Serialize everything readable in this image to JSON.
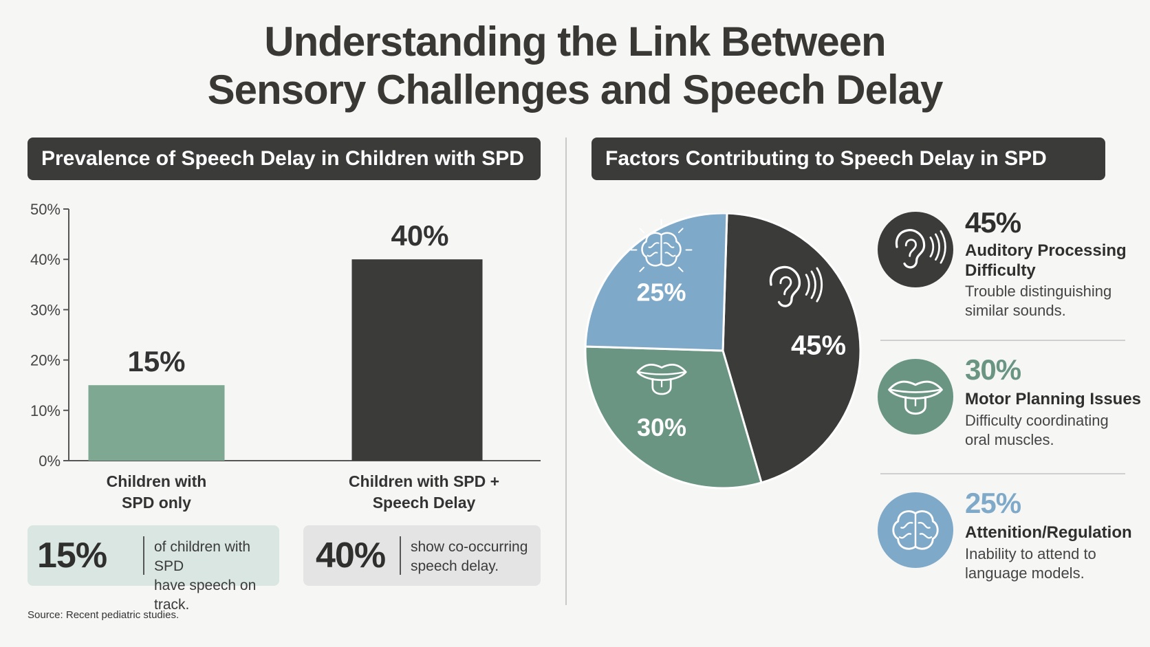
{
  "title": {
    "line1": "Understanding the Link Between",
    "line2": "Sensory Challenges and Speech Delay"
  },
  "colors": {
    "dark": "#3b3b3a",
    "green": "#7ea892",
    "pie_green": "#6a9582",
    "blue": "#7fa9c8",
    "stat_green_bg": "#d9e6e1",
    "stat_gray_bg": "#e4e4e4"
  },
  "left_panel": {
    "header": "Prevalence of Speech Delay in Children with SPD",
    "stats": [
      {
        "value": "15%",
        "text_line1": "of children with SPD",
        "text_line2": "have speech on track."
      },
      {
        "value": "40%",
        "text_line1": "show co-occurring",
        "text_line2": "speech delay."
      }
    ]
  },
  "right_panel": {
    "header": "Factors Contributing to Speech Delay in SPD",
    "factors": [
      {
        "percent": "45%",
        "title_line1": "Auditory Processing",
        "title_line2": "Difficulty",
        "desc_line1": "Trouble distinguishing",
        "desc_line2": "similar sounds.",
        "icon": "ear-icon",
        "color": "#3b3b3a"
      },
      {
        "percent": "30%",
        "title_line1": "Motor Planning Issues",
        "title_line2": "",
        "desc_line1": "Difficulty coordinating",
        "desc_line2": "oral muscles.",
        "icon": "mouth-icon",
        "color": "#6a9582"
      },
      {
        "percent": "25%",
        "title_line1": "Attenition/Regulation",
        "title_line2": "",
        "desc_line1": "Inability to attend to",
        "desc_line2": "language models.",
        "icon": "brain-icon",
        "color": "#7fa9c8"
      }
    ]
  },
  "source": "Source: Recent pediatric studies.",
  "chart_data": [
    {
      "type": "bar",
      "title": "Prevalence of Speech Delay in Children with SPD",
      "categories": [
        "Children with SPD only",
        "Children with SPD + Speech Delay"
      ],
      "category_lines": [
        [
          "Children with",
          "SPD only"
        ],
        [
          "Children with SPD +",
          "Speech Delay"
        ]
      ],
      "values": [
        15,
        40
      ],
      "value_labels": [
        "15%",
        "40%"
      ],
      "bar_colors": [
        "#7ea892",
        "#3b3b3a"
      ],
      "yticks": [
        "0%",
        "10%",
        "20%",
        "30%",
        "40%",
        "50%"
      ],
      "ylim": [
        0,
        50
      ],
      "grid": false
    },
    {
      "type": "pie",
      "title": "Factors Contributing to Speech Delay in SPD",
      "slices": [
        {
          "label": "Auditory Processing Difficulty",
          "value": 45,
          "display": "45%",
          "color": "#3b3b3a",
          "icon": "ear-icon"
        },
        {
          "label": "Motor Planning Issues",
          "value": 30,
          "display": "30%",
          "color": "#6a9582",
          "icon": "mouth-icon"
        },
        {
          "label": "Attenition/Regulation",
          "value": 25,
          "display": "25%",
          "color": "#7fa9c8",
          "icon": "brain-icon"
        }
      ]
    }
  ]
}
